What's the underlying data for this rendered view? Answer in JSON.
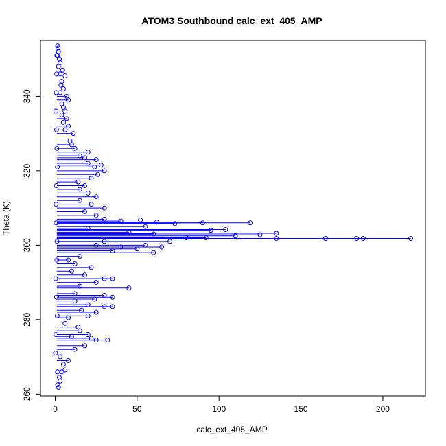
{
  "chart_data": {
    "type": "scatter",
    "title": "ATOM3 Southbound calc_ext_405_AMP",
    "xlabel": "calc_ext_405_AMP",
    "ylabel": "Theta (K)",
    "xlim": [
      -9,
      226
    ],
    "ylim": [
      259.5,
      355
    ],
    "x_ticks": [
      0,
      50,
      100,
      150,
      200
    ],
    "y_ticks": [
      260,
      280,
      300,
      320,
      340
    ],
    "x_tick_labels": [
      "0",
      "50",
      "100",
      "150",
      "200"
    ],
    "y_tick_labels": [
      "260",
      "280",
      "300",
      "320",
      "340"
    ],
    "grid": false,
    "marker": "open-circle",
    "series_color": "#0000ff",
    "series": [
      {
        "points": [
          [
            2.0,
            261.8
          ],
          [
            1.5,
            262.5
          ],
          [
            3.0,
            263.5
          ],
          [
            2.5,
            264.5
          ],
          [
            4.0,
            266.0
          ],
          [
            6.0,
            266.5
          ],
          [
            5.0,
            268.0
          ],
          [
            8.0,
            269.0
          ],
          [
            3.0,
            270.0
          ],
          [
            12.0,
            272.0
          ],
          [
            18.0,
            273.0
          ],
          [
            22.0,
            275.0
          ],
          [
            32.0,
            274.5
          ],
          [
            25.0,
            274.5
          ],
          [
            10.0,
            275.5
          ],
          [
            20.0,
            276.0
          ],
          [
            15.0,
            277.0
          ],
          [
            14.0,
            278.0
          ],
          [
            6.0,
            279.0
          ],
          [
            8.0,
            280.5
          ],
          [
            20.0,
            281.0
          ],
          [
            25.0,
            282.0
          ],
          [
            16.0,
            282.5
          ],
          [
            30.0,
            283.5
          ],
          [
            35.0,
            283.5
          ],
          [
            20.0,
            284.0
          ],
          [
            12.0,
            285.0
          ],
          [
            24.0,
            285.5
          ],
          [
            35.0,
            286.0
          ],
          [
            30.0,
            286.5
          ],
          [
            12.0,
            287.0
          ],
          [
            45.0,
            288.5
          ],
          [
            15.0,
            289.0
          ],
          [
            25.0,
            290.0
          ],
          [
            35.0,
            291.0
          ],
          [
            30.0,
            291.0
          ],
          [
            18.0,
            292.0
          ],
          [
            10.0,
            293.0
          ],
          [
            22.0,
            294.0
          ],
          [
            12.0,
            295.0
          ],
          [
            8.0,
            296.0
          ],
          [
            15.0,
            297.0
          ],
          [
            60.0,
            298.0
          ],
          [
            35.0,
            298.5
          ],
          [
            50.0,
            299.0
          ],
          [
            40.0,
            299.5
          ],
          [
            65.0,
            299.5
          ],
          [
            25.0,
            300.0
          ],
          [
            55.0,
            300.0
          ],
          [
            30.0,
            301.0
          ],
          [
            70.0,
            301.0
          ],
          [
            135.0,
            301.8
          ],
          [
            165.0,
            301.8
          ],
          [
            184.0,
            301.8
          ],
          [
            188.0,
            301.8
          ],
          [
            217.0,
            301.8
          ],
          [
            80.0,
            302.0
          ],
          [
            92.0,
            302.0
          ],
          [
            110.0,
            302.5
          ],
          [
            125.0,
            302.8
          ],
          [
            135.0,
            303.2
          ],
          [
            60.0,
            303.0
          ],
          [
            45.0,
            303.5
          ],
          [
            95.0,
            304.0
          ],
          [
            104.0,
            304.2
          ],
          [
            20.0,
            304.5
          ],
          [
            55.0,
            305.0
          ],
          [
            73.0,
            305.8
          ],
          [
            90.0,
            306.0
          ],
          [
            119.0,
            306.0
          ],
          [
            62.0,
            306.2
          ],
          [
            40.0,
            306.5
          ],
          [
            52.0,
            306.8
          ],
          [
            30.0,
            307.0
          ],
          [
            25.0,
            308.0
          ],
          [
            18.0,
            309.0
          ],
          [
            30.0,
            310.0
          ],
          [
            22.0,
            311.0
          ],
          [
            15.0,
            312.0
          ],
          [
            25.0,
            313.0
          ],
          [
            20.0,
            314.0
          ],
          [
            15.0,
            315.0
          ],
          [
            18.0,
            316.0
          ],
          [
            14.0,
            317.0
          ],
          [
            22.0,
            318.0
          ],
          [
            26.0,
            319.0
          ],
          [
            30.0,
            320.0
          ],
          [
            24.0,
            321.0
          ],
          [
            28.0,
            321.5
          ],
          [
            20.0,
            322.0
          ],
          [
            25.0,
            323.0
          ],
          [
            18.0,
            323.5
          ],
          [
            15.0,
            324.0
          ],
          [
            20.0,
            325.0
          ],
          [
            12.0,
            326.0
          ],
          [
            10.0,
            327.0
          ],
          [
            9.0,
            328.0
          ],
          [
            11.0,
            330.0
          ],
          [
            6.0,
            331.0
          ],
          [
            8.0,
            332.0
          ],
          [
            5.0,
            333.0
          ],
          [
            7.0,
            334.0
          ],
          [
            4.0,
            335.0
          ],
          [
            6.0,
            336.0
          ],
          [
            5.0,
            337.0
          ],
          [
            4.0,
            338.0
          ],
          [
            8.0,
            339.0
          ],
          [
            7.0,
            340.0
          ],
          [
            3.0,
            341.0
          ],
          [
            5.0,
            342.0
          ],
          [
            3.5,
            343.0
          ],
          [
            4.0,
            344.0
          ],
          [
            6.0,
            345.5
          ],
          [
            3.0,
            346.0
          ],
          [
            4.5,
            347.0
          ],
          [
            2.0,
            348.0
          ],
          [
            3.0,
            349.0
          ],
          [
            2.5,
            350.0
          ],
          [
            1.5,
            351.0
          ],
          [
            2.0,
            352.0
          ],
          [
            1.8,
            353.0
          ],
          [
            1.5,
            353.6
          ],
          [
            0.5,
            276.0
          ],
          [
            0.8,
            286.0
          ],
          [
            1.0,
            296.0
          ],
          [
            0.6,
            306.0
          ],
          [
            0.7,
            316.0
          ],
          [
            1.0,
            326.0
          ],
          [
            0.4,
            336.0
          ],
          [
            0.9,
            346.0
          ],
          [
            1.2,
            281.0
          ],
          [
            0.3,
            291.0
          ],
          [
            1.1,
            301.0
          ],
          [
            0.5,
            311.0
          ],
          [
            1.3,
            321.0
          ],
          [
            0.8,
            331.0
          ],
          [
            0.6,
            341.0
          ],
          [
            1.0,
            351.0
          ],
          [
            0.2,
            271.0
          ],
          [
            1.4,
            266.0
          ]
        ]
      }
    ]
  }
}
